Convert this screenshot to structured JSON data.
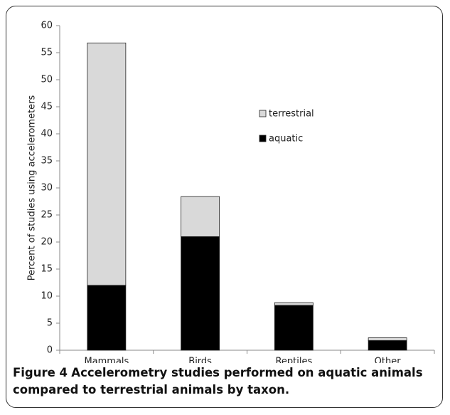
{
  "chart_data": {
    "type": "stacked-bar",
    "y_label": "Percent of studies using accelerometers",
    "categories": [
      "Mammals",
      "Birds",
      "Reptiles",
      "Other"
    ],
    "series": [
      {
        "name": "aquatic",
        "color": "#000000",
        "values": [
          12,
          21,
          8.3,
          1.8
        ]
      },
      {
        "name": "terrestrial",
        "color": "#d9d9d9",
        "values": [
          44.8,
          7.4,
          0.5,
          0.5
        ]
      }
    ],
    "ylim": [
      0,
      60
    ],
    "yticks": [
      0,
      5,
      10,
      15,
      20,
      25,
      30,
      35,
      40,
      45,
      50,
      55,
      60
    ],
    "grid": false
  },
  "figure": {
    "label": "Figure 4",
    "caption": "Accelerometry studies performed on aquatic animals compared to terrestrial animals by taxon."
  }
}
